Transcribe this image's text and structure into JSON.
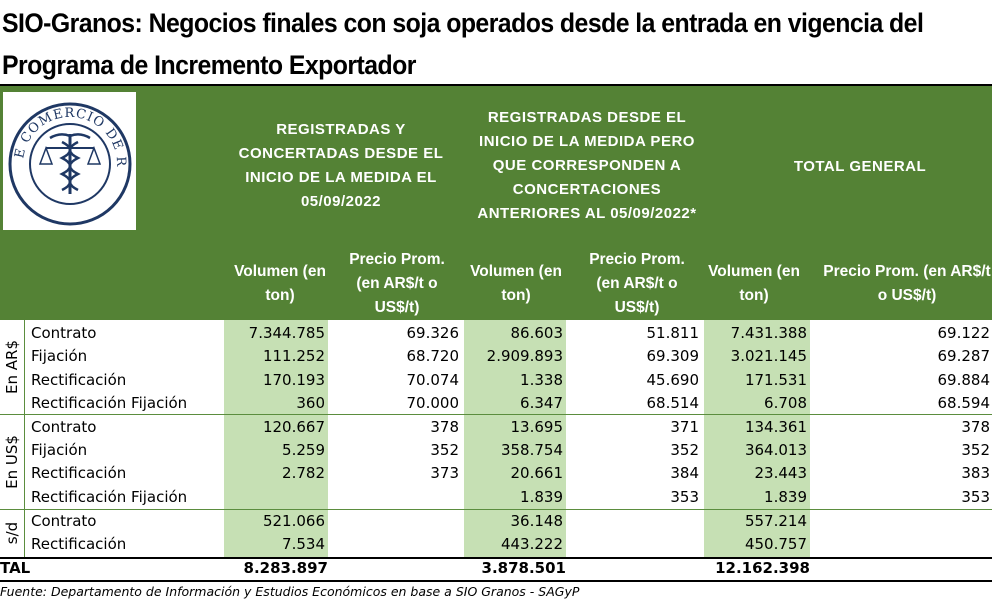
{
  "title": {
    "line1": "SIO-Granos: Negocios finales con soja operados desde la entrada en vigencia del",
    "line2": "Programa de Incremento Exportador"
  },
  "logo": {
    "icon": "bolsa-de-comercio-de-rosario-seal",
    "text": "BOLSA DE COMERCIO DE ROSARIO"
  },
  "groups": [
    {
      "label": "REGISTRADAS Y CONCERTADAS DESDE EL INICIO DE LA MEDIDA EL 05/09/2022"
    },
    {
      "label": "REGISTRADAS DESDE EL INICIO DE LA MEDIDA PERO QUE CORRESPONDEN A CONCERTACIONES ANTERIORES AL 05/09/2022*"
    },
    {
      "label": "TOTAL GENERAL"
    }
  ],
  "subheaders": {
    "vol1": "Volumen (en ton)",
    "pre1": "Precio Prom. (en AR$/t o US$/t)",
    "vol2": "Volumen (en ton)",
    "pre2": "Precio Prom. (en AR$/t o US$/t)",
    "vol3": "Volumen (en ton)",
    "pre3": "Precio Prom. (en AR$/t o US$/t)"
  },
  "sections": [
    {
      "label": "En AR$",
      "rows": [
        {
          "name": "Contrato",
          "v1": "7.344.785",
          "p1": "69.326",
          "v2": "86.603",
          "p2": "51.811",
          "v3": "7.431.388",
          "p3": "69.122"
        },
        {
          "name": "Fijación",
          "v1": "111.252",
          "p1": "68.720",
          "v2": "2.909.893",
          "p2": "69.309",
          "v3": "3.021.145",
          "p3": "69.287"
        },
        {
          "name": "Rectificación",
          "v1": "170.193",
          "p1": "70.074",
          "v2": "1.338",
          "p2": "45.690",
          "v3": "171.531",
          "p3": "69.884"
        },
        {
          "name": "Rectificación Fijación",
          "v1": "360",
          "p1": "70.000",
          "v2": "6.347",
          "p2": "68.514",
          "v3": "6.708",
          "p3": "68.594"
        }
      ]
    },
    {
      "label": "En US$",
      "rows": [
        {
          "name": "Contrato",
          "v1": "120.667",
          "p1": "378",
          "v2": "13.695",
          "p2": "371",
          "v3": "134.361",
          "p3": "378"
        },
        {
          "name": "Fijación",
          "v1": "5.259",
          "p1": "352",
          "v2": "358.754",
          "p2": "352",
          "v3": "364.013",
          "p3": "352"
        },
        {
          "name": "Rectificación",
          "v1": "2.782",
          "p1": "373",
          "v2": "20.661",
          "p2": "384",
          "v3": "23.443",
          "p3": "383"
        },
        {
          "name": "Rectificación Fijación",
          "v1": "",
          "p1": "",
          "v2": "1.839",
          "p2": "353",
          "v3": "1.839",
          "p3": "353"
        }
      ]
    },
    {
      "label": "s/d",
      "rows": [
        {
          "name": "Contrato",
          "v1": "521.066",
          "p1": "",
          "v2": "36.148",
          "p2": "",
          "v3": "557.214",
          "p3": ""
        },
        {
          "name": "Rectificación",
          "v1": "7.534",
          "p1": "",
          "v2": "443.222",
          "p2": "",
          "v3": "450.757",
          "p3": ""
        }
      ]
    }
  ],
  "total": {
    "label": "TAL",
    "v1": "8.283.897",
    "v2": "3.878.501",
    "v3": "12.162.398"
  },
  "source": "Fuente: Departamento de Información y Estudios Económicos en base a SIO Granos - SAGyP",
  "colors": {
    "header_green": "#548235",
    "light_green": "#c6e0b4",
    "header_text": "#ffffff"
  }
}
